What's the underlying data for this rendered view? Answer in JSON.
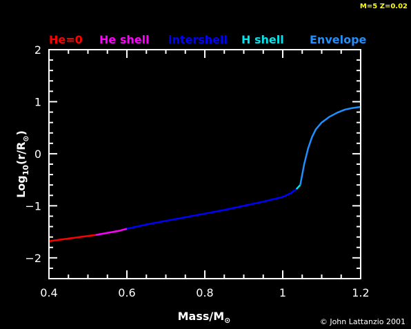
{
  "header": {
    "model_label": "M=5 Z=0.02"
  },
  "footer": {
    "credit": "© John Lattanzio 2001"
  },
  "chart_data": {
    "type": "line",
    "xlabel_main": "Mass/M",
    "xlabel_sub": "⊙",
    "ylabel_main": "Log",
    "ylabel_sub1": "10",
    "ylabel_mid": "(r/R",
    "ylabel_sub2": "⊙",
    "ylabel_end": ")",
    "xlim": [
      0.4,
      1.2
    ],
    "ylim": [
      -2.4,
      2
    ],
    "x_ticks": [
      0.4,
      0.6,
      0.8,
      1,
      1.2
    ],
    "x_tick_labels": [
      "0.4",
      "0.6",
      "0.8",
      "1",
      "1.2"
    ],
    "y_ticks": [
      -2,
      -1,
      0,
      1,
      2
    ],
    "y_tick_labels": [
      "−2",
      "−1",
      "0",
      "1",
      "2"
    ],
    "legend": [
      {
        "name": "He=0",
        "color": "#ff0000"
      },
      {
        "name": "He shell",
        "color": "#ff00ff"
      },
      {
        "name": "intershell",
        "color": "#0000ff"
      },
      {
        "name": "H shell",
        "color": "#00e5ee"
      },
      {
        "name": "Envelope",
        "color": "#1e90ff"
      }
    ],
    "series": [
      {
        "name": "He=0",
        "color": "#ff0000",
        "x": [
          0.4,
          0.43,
          0.46,
          0.49,
          0.52
        ],
        "y": [
          -1.68,
          -1.65,
          -1.62,
          -1.59,
          -1.56
        ]
      },
      {
        "name": "He shell",
        "color": "#ff00ff",
        "x": [
          0.52,
          0.55,
          0.58,
          0.6
        ],
        "y": [
          -1.56,
          -1.52,
          -1.48,
          -1.44
        ]
      },
      {
        "name": "intershell",
        "color": "#0000ff",
        "x": [
          0.6,
          0.65,
          0.7,
          0.75,
          0.8,
          0.85,
          0.9,
          0.95,
          1.0,
          1.02,
          1.035
        ],
        "y": [
          -1.44,
          -1.36,
          -1.29,
          -1.22,
          -1.15,
          -1.08,
          -1.0,
          -0.92,
          -0.83,
          -0.76,
          -0.68
        ]
      },
      {
        "name": "H shell",
        "color": "#00e5ee",
        "x": [
          1.035,
          1.045
        ],
        "y": [
          -0.68,
          -0.6
        ]
      },
      {
        "name": "Envelope",
        "color": "#1e90ff",
        "x": [
          1.045,
          1.055,
          1.065,
          1.075,
          1.085,
          1.1,
          1.12,
          1.14,
          1.16,
          1.18,
          1.2
        ],
        "y": [
          -0.6,
          -0.2,
          0.1,
          0.32,
          0.47,
          0.6,
          0.71,
          0.79,
          0.85,
          0.88,
          0.9
        ]
      }
    ]
  }
}
